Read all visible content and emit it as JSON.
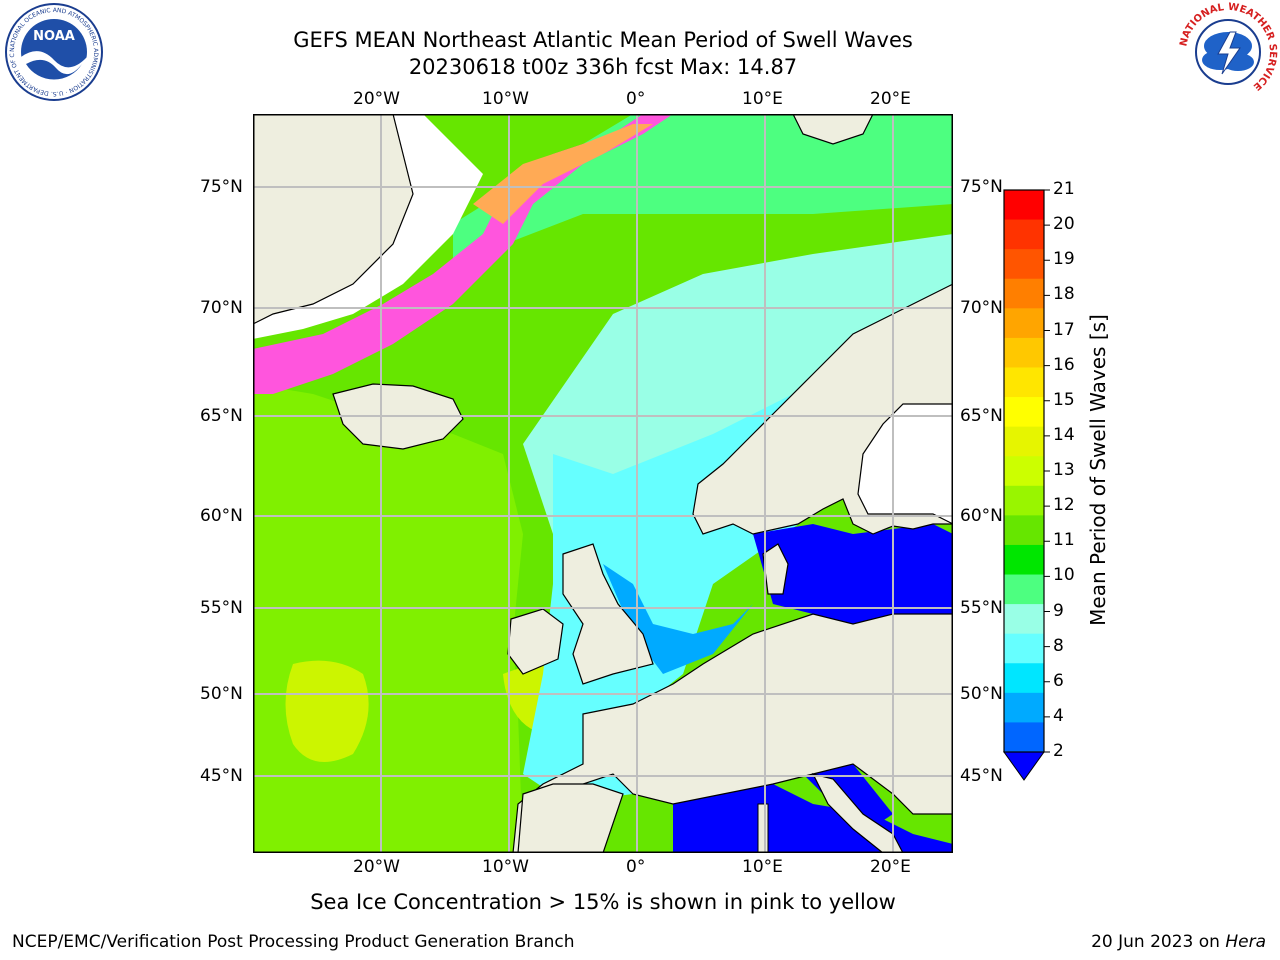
{
  "title_line1": "GEFS MEAN Northeast Atlantic Mean Period of Swell Waves",
  "title_line2": "20230618 t00z 336h fcst   Max: 14.87",
  "note": "Sea Ice Concentration > 15% is shown in pink to yellow",
  "footer_left": "NCEP/EMC/Verification Post Processing Product Generation Branch",
  "footer_right_prefix": "20 Jun 2023 on ",
  "footer_right_host": "Hera",
  "lon_labels": [
    "20°W",
    "10°W",
    "0°",
    "10°E",
    "20°E"
  ],
  "lat_labels": [
    "75°N",
    "70°N",
    "65°N",
    "60°N",
    "55°N",
    "50°N",
    "45°N"
  ],
  "colorbar": {
    "label": "Mean Period of Swell Waves [s]",
    "tick_labels": [
      "21",
      "20",
      "19",
      "18",
      "17",
      "16",
      "15",
      "14",
      "13",
      "12",
      "11",
      "10",
      "9",
      "8",
      "6",
      "4",
      "2"
    ],
    "colors": [
      "#ff0000",
      "#ff3300",
      "#ff5500",
      "#ff7f00",
      "#ffa500",
      "#ffc800",
      "#ffe600",
      "#ffff00",
      "#e6f500",
      "#ccff00",
      "#99f500",
      "#66e600",
      "#00e600",
      "#4dff80",
      "#99ffe6",
      "#66ffff",
      "#00e6ff",
      "#00aaff",
      "#0066ff"
    ],
    "extend_color": "#0000ff"
  },
  "logos": {
    "noaa": {
      "text": "NOAA",
      "ring_text": "NATIONAL OCEANIC AND ATMOSPHERIC ADMINISTRATION · U.S. DEPARTMENT OF COMMERCE"
    },
    "nws": {
      "ring_text": "NATIONAL WEATHER SERVICE"
    }
  },
  "map_colors": {
    "land": "#eeeedf",
    "border": "#000000",
    "grid": "#bfbfbf",
    "ice_pink": "#ff55dd",
    "ice_yellow": "#ffee33"
  }
}
